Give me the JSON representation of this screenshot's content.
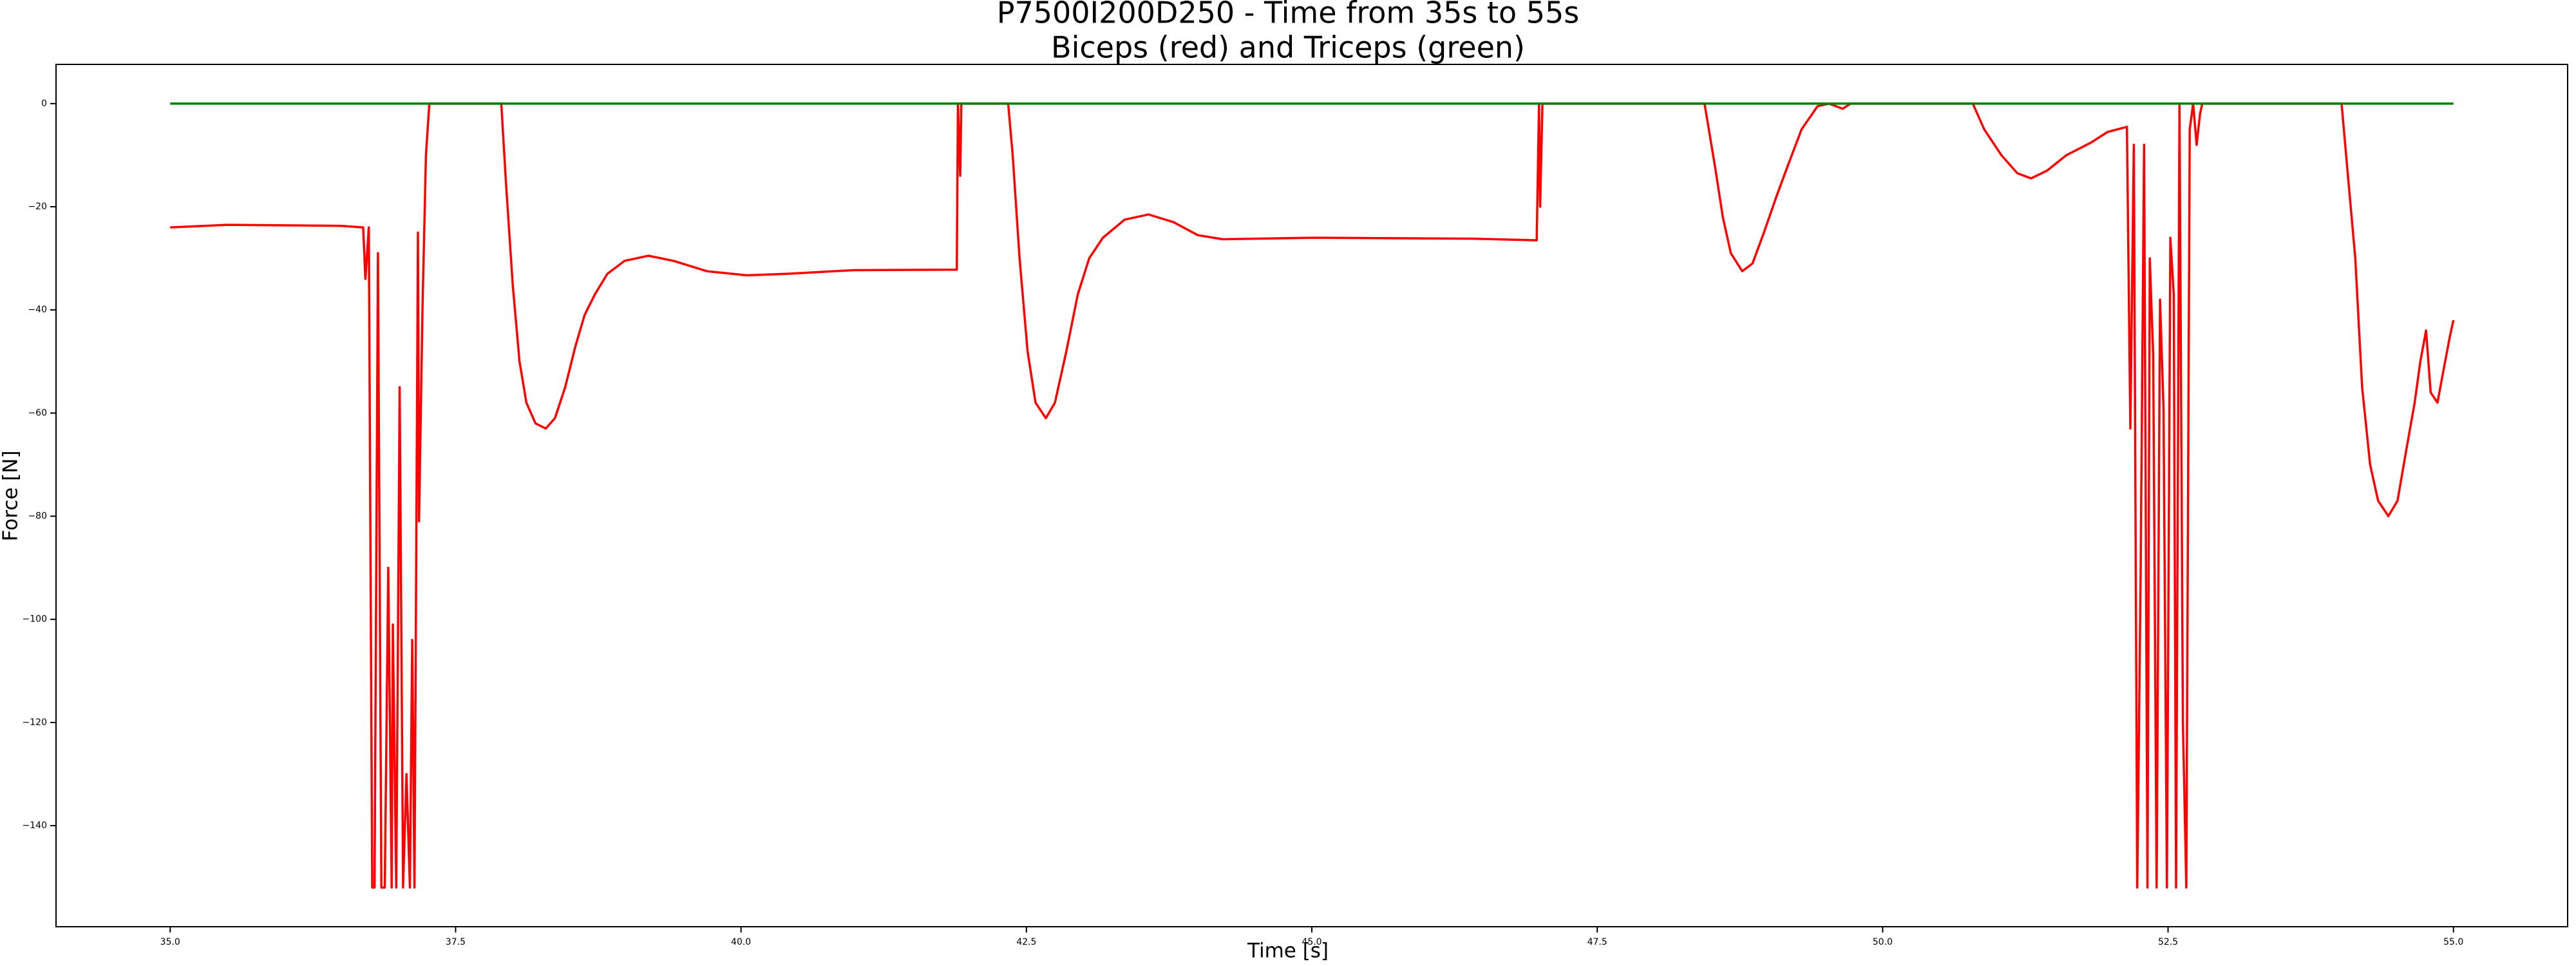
{
  "chart_data": {
    "type": "line",
    "title": "P7500I200D250 - Time from 35s to 55s",
    "subtitle": "Biceps (red) and Triceps (green)",
    "x_label": "Time [s]",
    "y_label": "Force [N]",
    "xlim": [
      34,
      56
    ],
    "ylim": [
      -159.6,
      7.6
    ],
    "xticks": [
      {
        "value": 35,
        "label": "35.0"
      },
      {
        "value": 37.5,
        "label": "37.5"
      },
      {
        "value": 40,
        "label": "40.0"
      },
      {
        "value": 42.5,
        "label": "42.5"
      },
      {
        "value": 45,
        "label": "45.0"
      },
      {
        "value": 47.5,
        "label": "47.5"
      },
      {
        "value": 50,
        "label": "50.0"
      },
      {
        "value": 52.5,
        "label": "52.5"
      },
      {
        "value": 55,
        "label": "55.0"
      }
    ],
    "yticks": [
      0,
      {
        "value": -20,
        "label": "−20"
      },
      {
        "value": -40,
        "label": "−40"
      },
      {
        "value": -60,
        "label": "−60"
      },
      {
        "value": -80,
        "label": "−80"
      },
      {
        "value": -100,
        "label": "−100"
      },
      {
        "value": -120,
        "label": "−120"
      },
      {
        "value": -140,
        "label": "−140"
      }
    ],
    "series": [
      {
        "color": "#ff0000",
        "x": [
          35.0,
          35.5,
          36.0,
          36.5,
          36.69,
          36.71,
          36.74,
          36.77,
          36.79,
          36.82,
          36.85,
          36.88,
          36.91,
          36.94,
          36.95,
          36.98,
          37.01,
          37.04,
          37.07,
          37.1,
          37.12,
          37.14,
          37.17,
          37.18,
          37.21,
          37.24,
          37.27,
          37.9,
          37.94,
          38.0,
          38.06,
          38.12,
          38.2,
          38.29,
          38.37,
          38.46,
          38.55,
          38.63,
          38.72,
          38.83,
          38.98,
          39.19,
          39.41,
          39.7,
          40.05,
          40.41,
          40.99,
          41.89,
          41.9,
          41.92,
          41.93,
          42.34,
          42.38,
          42.44,
          42.51,
          42.58,
          42.67,
          42.75,
          42.85,
          42.95,
          43.05,
          43.17,
          43.36,
          43.57,
          43.79,
          44.0,
          44.22,
          45.01,
          46.44,
          46.97,
          46.99,
          47.0,
          47.02,
          48.44,
          48.53,
          48.6,
          48.67,
          48.77,
          48.86,
          48.96,
          49.07,
          49.17,
          49.29,
          49.43,
          49.53,
          49.65,
          49.72,
          50.79,
          50.89,
          51.04,
          51.18,
          51.3,
          51.44,
          51.61,
          51.83,
          51.97,
          52.14,
          52.17,
          52.2,
          52.23,
          52.26,
          52.29,
          52.32,
          52.34,
          52.37,
          52.4,
          52.43,
          52.46,
          52.49,
          52.52,
          52.55,
          52.57,
          52.6,
          52.63,
          52.66,
          52.69,
          52.72,
          52.75,
          52.78,
          52.8,
          54.02,
          54.08,
          54.14,
          54.2,
          54.27,
          54.34,
          54.43,
          54.51,
          54.58,
          54.66,
          54.71,
          54.76,
          54.8,
          54.86,
          54.91,
          54.97,
          55.0
        ],
        "values": [
          -24,
          -23.5,
          -23.6,
          -23.7,
          -24,
          -34,
          -24,
          -152,
          -152,
          -29,
          -152,
          -152,
          -90,
          -152,
          -101,
          -152,
          -55,
          -152,
          -130,
          -152,
          -104,
          -152,
          -25,
          -81,
          -40,
          -10,
          0,
          0,
          -15,
          -35,
          -50,
          -58,
          -62,
          -63,
          -61,
          -55,
          -47,
          -41,
          -37,
          -33,
          -30.5,
          -29.5,
          -30.5,
          -32.5,
          -33.3,
          -33,
          -32.3,
          -32.2,
          0,
          -14,
          0,
          0,
          -10,
          -30,
          -48,
          -58,
          -61,
          -58,
          -48,
          -37,
          -30,
          -26,
          -22.5,
          -21.5,
          -23,
          -25.5,
          -26.3,
          -26,
          -26.2,
          -26.5,
          0,
          -20,
          0,
          0,
          -12,
          -22,
          -29,
          -32.5,
          -31,
          -25,
          -18,
          -12,
          -5,
          -0.5,
          0,
          -1,
          0,
          0,
          -5,
          -10,
          -13.5,
          -14.5,
          -13,
          -10,
          -7.5,
          -5.5,
          -4.5,
          -63,
          -8,
          -152,
          -91,
          -8,
          -152,
          -30,
          -49,
          -152,
          -38,
          -59,
          -152,
          -26,
          -37,
          -152,
          0,
          -120,
          -152,
          -5,
          0,
          -8,
          -2,
          0,
          0,
          -15,
          -30,
          -55,
          -70,
          -77,
          -80,
          -77,
          -68,
          -58,
          -50,
          -44,
          -56,
          -58,
          -52,
          -45,
          -42
        ]
      },
      {
        "color": "#008000",
        "x": [
          35,
          55
        ],
        "values": [
          0,
          0
        ]
      }
    ]
  }
}
